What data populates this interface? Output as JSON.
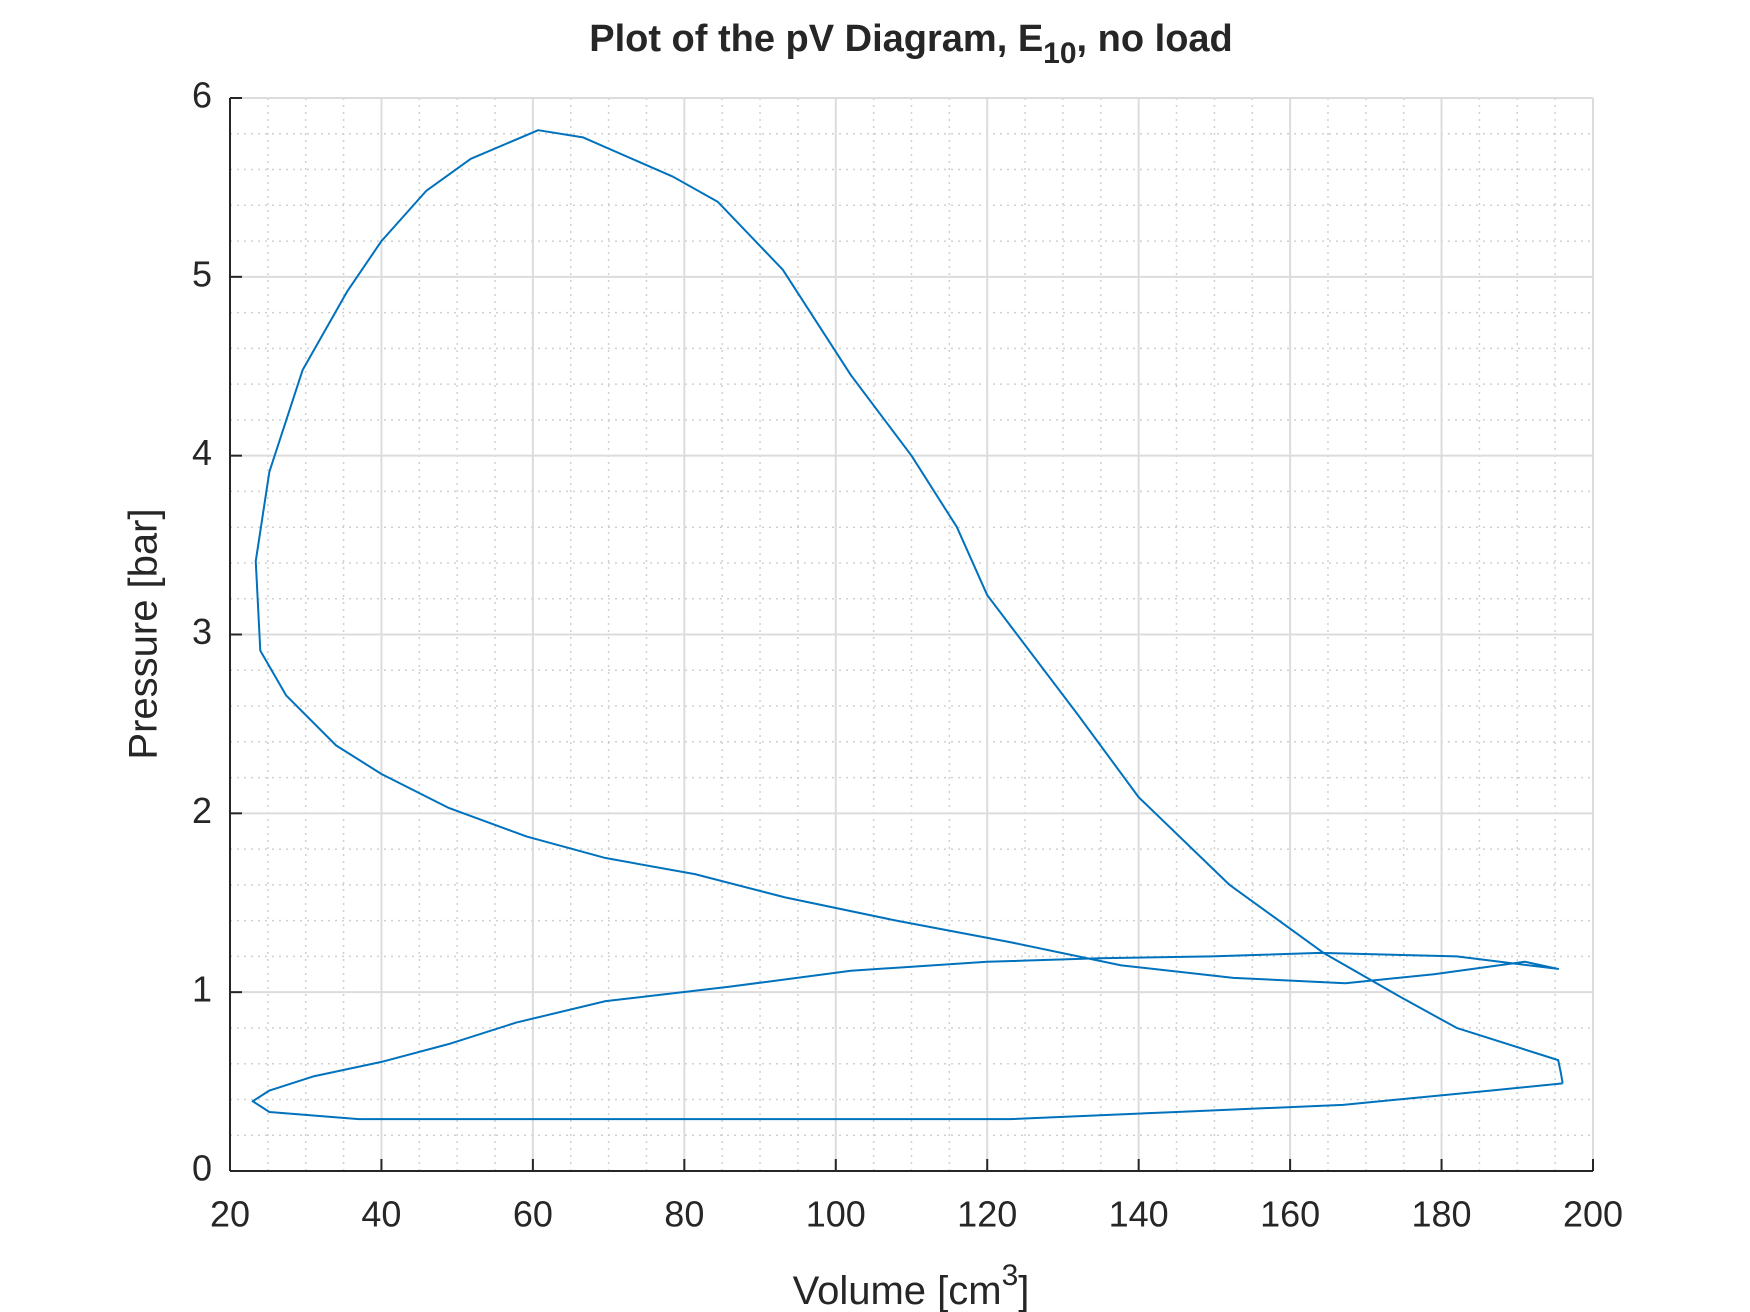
{
  "chart_data": {
    "type": "line",
    "title": {
      "text": "Plot of the pV Diagram, E",
      "subscript": "10",
      "suffix": ", no load"
    },
    "x_label": {
      "text": "Volume [cm",
      "superscript": "3",
      "suffix": "]"
    },
    "y_label": "Pressure [bar]",
    "series": [
      {
        "name": "pV",
        "color": "#0072bd",
        "x": [
          196,
          186.6,
          167,
          145,
          123,
          93.3,
          63.7,
          37,
          25.2,
          23,
          25.2,
          31.1,
          40,
          48.9,
          57.8,
          69.6,
          85.9,
          102,
          120,
          134.8,
          149.6,
          164,
          182,
          195.4,
          191,
          179,
          167.3,
          152.5,
          137.7,
          123,
          108,
          93.3,
          81.4,
          69.6,
          59.2,
          48.9,
          40,
          34,
          27.4,
          24,
          23.4,
          25.2,
          29.6,
          35.5,
          40,
          45.9,
          51.8,
          60.7,
          66.6,
          78.5,
          84.4,
          93,
          102,
          110,
          116,
          120,
          132,
          140,
          152,
          164.4,
          174.7,
          182,
          195.4,
          195.7,
          196
        ],
        "values": [
          0.49,
          0.45,
          0.37,
          0.33,
          0.29,
          0.29,
          0.29,
          0.29,
          0.33,
          0.39,
          0.45,
          0.53,
          0.61,
          0.71,
          0.83,
          0.95,
          1.03,
          1.12,
          1.17,
          1.19,
          1.2,
          1.22,
          1.2,
          1.13,
          1.17,
          1.1,
          1.05,
          1.08,
          1.15,
          1.28,
          1.4,
          1.53,
          1.66,
          1.75,
          1.87,
          2.03,
          2.22,
          2.38,
          2.66,
          2.91,
          3.41,
          3.91,
          4.48,
          4.92,
          5.2,
          5.48,
          5.66,
          5.82,
          5.78,
          5.56,
          5.42,
          5.04,
          4.45,
          4.0,
          3.6,
          3.22,
          2.55,
          2.09,
          1.6,
          1.22,
          0.97,
          0.8,
          0.62,
          0.56,
          0.49
        ]
      }
    ],
    "xlim": [
      20,
      200
    ],
    "xticks": [
      20,
      40,
      60,
      80,
      100,
      120,
      140,
      160,
      180,
      200
    ],
    "ylim": [
      0,
      6
    ],
    "yticks": [
      0,
      1,
      2,
      3,
      4,
      5,
      6
    ],
    "grid": true,
    "minor_grid": {
      "x_step": 5,
      "y_step": 0.2
    }
  }
}
